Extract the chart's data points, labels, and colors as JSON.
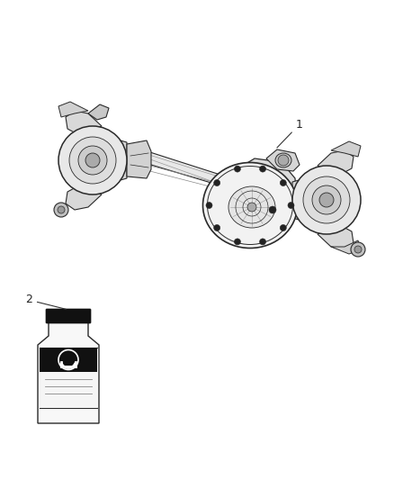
{
  "background_color": "#ffffff",
  "fig_width": 4.38,
  "fig_height": 5.33,
  "dpi": 100,
  "label1": "1",
  "label2": "2",
  "line_color": "#2a2a2a",
  "light_gray": "#cccccc",
  "mid_gray": "#999999",
  "dark_gray": "#555555",
  "label_fontsize": 9
}
